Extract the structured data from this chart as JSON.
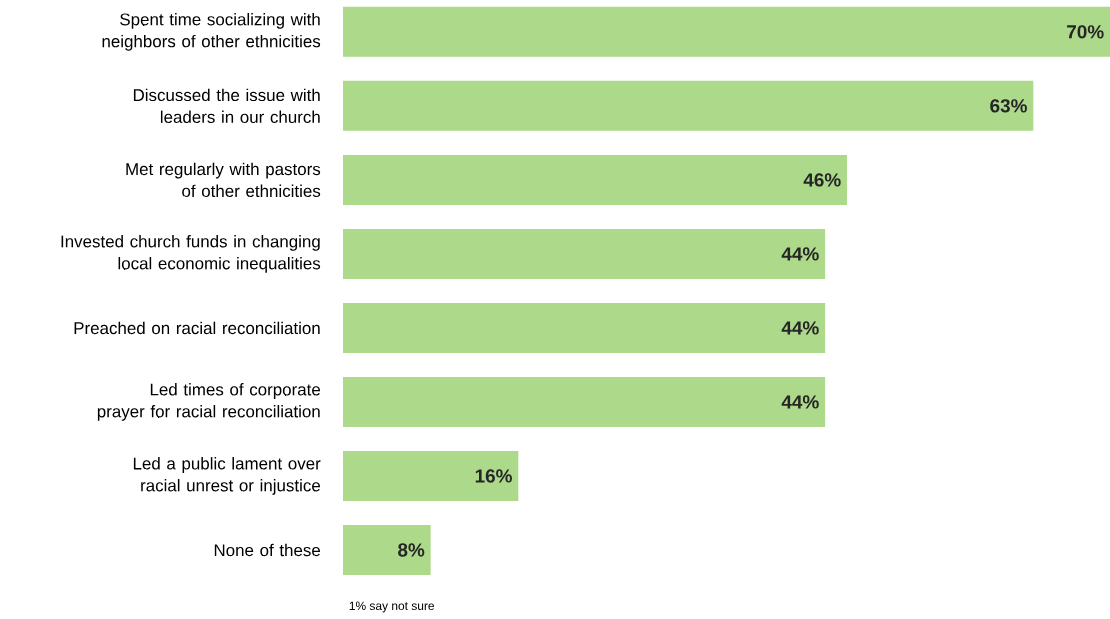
{
  "chart_data": {
    "type": "bar",
    "orientation": "horizontal",
    "categories": [
      "Spent time socializing with neighbors of other ethnicities",
      "Discussed the issue with leaders in our church",
      "Met regularly with pastors of other ethnicities",
      "Invested church funds in changing local economic inequalities",
      "Preached on racial reconciliation",
      "Led times of corporate prayer for racial reconciliation",
      "Led a public lament over racial unrest or injustice",
      "None of these"
    ],
    "values": [
      70,
      63,
      46,
      44,
      44,
      44,
      16,
      8
    ],
    "value_labels": [
      "70%",
      "63%",
      "46%",
      "44%",
      "44%",
      "44%",
      "16%",
      "8%"
    ],
    "color": "#acd98a",
    "annotations": [
      "1% say not sure"
    ]
  }
}
